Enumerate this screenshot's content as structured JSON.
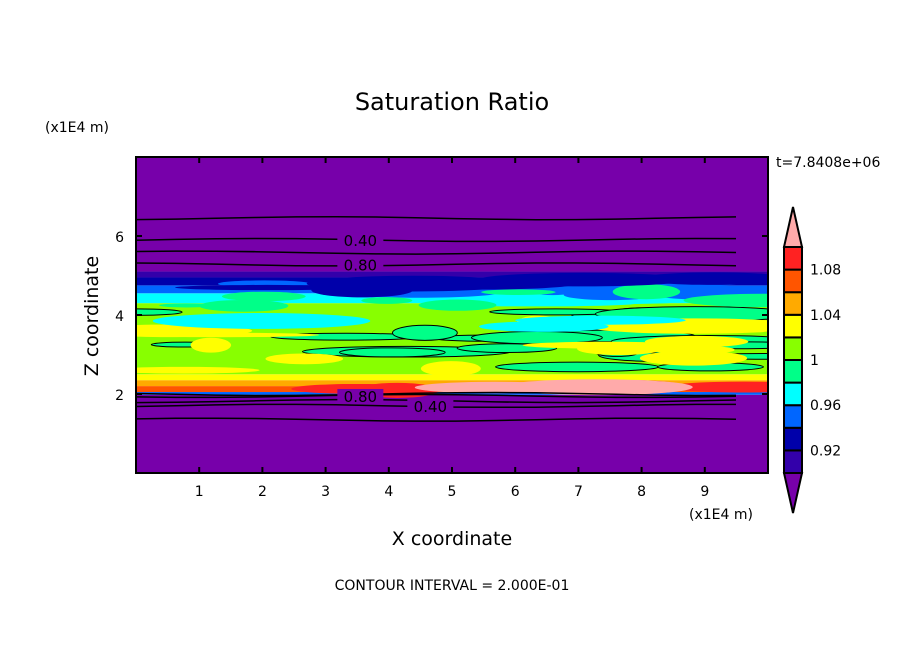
{
  "chart_data": {
    "type": "heatmap",
    "title": "Saturation Ratio",
    "xlabel": "X coordinate",
    "ylabel": "Z coordinate",
    "x_unit_label": "(x1E4 m)",
    "y_unit_label": "(x1E4 m)",
    "time_label": "t=7.8408e+06",
    "contour_interval_label": "CONTOUR INTERVAL = 2.000E-01",
    "xlim": [
      0,
      10
    ],
    "ylim": [
      0,
      8
    ],
    "x_ticks": [
      1,
      2,
      3,
      4,
      5,
      6,
      7,
      8,
      9
    ],
    "x_tick_labels": [
      "1",
      "2",
      "3",
      "4",
      "5",
      "6",
      "7",
      "8",
      "9"
    ],
    "y_ticks": [
      2,
      4,
      6
    ],
    "y_tick_labels": [
      "2",
      "4",
      "6"
    ],
    "colorbar": {
      "levels": [
        0.9,
        0.92,
        0.94,
        0.96,
        0.98,
        1.0,
        1.02,
        1.04,
        1.06,
        1.08,
        1.1
      ],
      "colors": [
        "#3300aa",
        "#0000aa",
        "#0066ff",
        "#00ffff",
        "#00ff88",
        "#88ff00",
        "#ffff00",
        "#ffaa00",
        "#ff5500",
        "#ff2222"
      ],
      "under_color": "#7700aa",
      "over_color": "#ffaaaa",
      "tick_values": [
        1.08,
        1.04,
        1,
        0.96,
        0.92
      ],
      "tick_labels": [
        "1.08",
        "1.04",
        "1",
        "0.96",
        "0.92"
      ]
    },
    "bands": [
      {
        "z": [
          0,
          1.98
        ],
        "color": "#7700aa"
      },
      {
        "z": [
          1.98,
          2.05
        ],
        "color": "#0066ff"
      },
      {
        "z": [
          2.05,
          2.2
        ],
        "color": "#ff5500"
      },
      {
        "z": [
          2.2,
          2.35
        ],
        "color": "#ffaa00"
      },
      {
        "z": [
          2.35,
          2.5
        ],
        "color": "#ffff00"
      },
      {
        "z": [
          2.5,
          4.3
        ],
        "color": "#88ff00"
      },
      {
        "z": [
          4.3,
          4.55
        ],
        "color": "#00ffff"
      },
      {
        "z": [
          4.55,
          4.75
        ],
        "color": "#0066ff"
      },
      {
        "z": [
          4.75,
          4.95
        ],
        "color": "#0000aa"
      },
      {
        "z": [
          4.95,
          5.1
        ],
        "color": "#3300aa"
      },
      {
        "z": [
          5.1,
          8
        ],
        "color": "#7700aa"
      }
    ],
    "contour_lines": [
      {
        "z": 6.45,
        "level": 0.2,
        "label": ""
      },
      {
        "z": 5.9,
        "level": 0.4,
        "label": "0.40"
      },
      {
        "z": 5.58,
        "level": 0.6,
        "label": ""
      },
      {
        "z": 5.28,
        "level": 0.8,
        "label": "0.80"
      },
      {
        "z": 2.0,
        "level": 1.0,
        "label": ""
      },
      {
        "z": 1.95,
        "level": 0.8,
        "label": "0.80"
      },
      {
        "z": 1.82,
        "level": 0.6,
        "label": ""
      },
      {
        "z": 1.7,
        "level": 0.4,
        "label": "0.40"
      },
      {
        "z": 1.35,
        "level": 0.2,
        "label": ""
      }
    ]
  }
}
